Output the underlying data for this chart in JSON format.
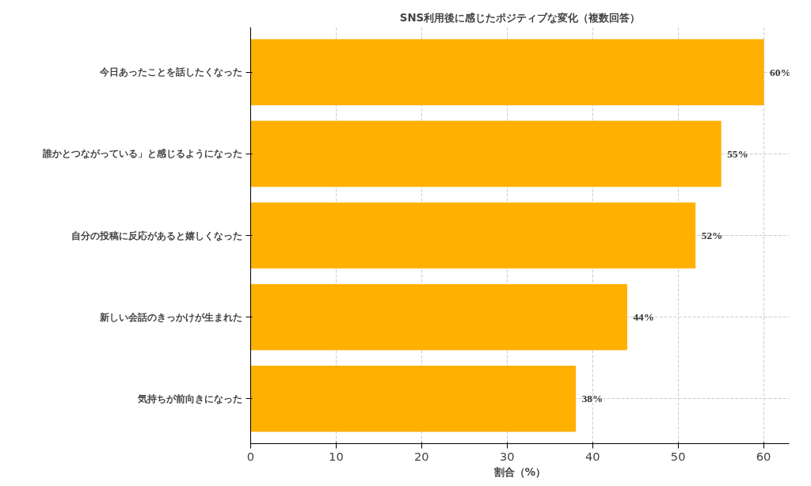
{
  "chart_data": {
    "type": "bar",
    "orientation": "horizontal",
    "title": "SNS利用後に感じたポジティブな変化（複数回答）",
    "xlabel": "割合（%）",
    "categories": [
      "今日あったことを話したくなった",
      "誰かとつながっている」と感じるようになった",
      "自分の投稿に反応があると嬉しくなった",
      "新しい会話のきっかけが生まれた",
      "気持ちが前向きになった"
    ],
    "values": [
      60,
      55,
      52,
      44,
      38
    ],
    "color": "#ffb000",
    "value_labels": [
      "60%",
      "55%",
      "52%",
      "44%",
      "38%"
    ],
    "xlim": [
      0,
      63
    ],
    "xticks": [
      0,
      10,
      20,
      30,
      40,
      50,
      60
    ],
    "grid": true
  }
}
